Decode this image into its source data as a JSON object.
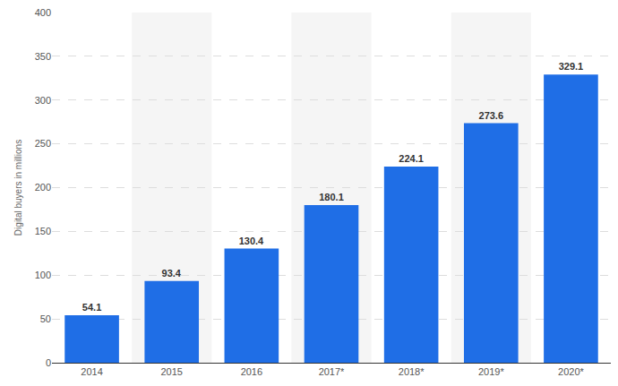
{
  "chart_data": {
    "type": "bar",
    "y_label": "Digital buyers in millions",
    "categories": [
      "2014",
      "2015",
      "2016",
      "2017*",
      "2018*",
      "2019*",
      "2020*"
    ],
    "values": [
      54.1,
      93.4,
      130.4,
      180.1,
      224.1,
      273.6,
      329.1
    ],
    "color": "#1f6ee6",
    "ylim": [
      0,
      400
    ],
    "yticks": [
      0,
      50,
      100,
      150,
      200,
      250,
      300,
      350,
      400
    ],
    "grid": true,
    "data_labels": true
  }
}
